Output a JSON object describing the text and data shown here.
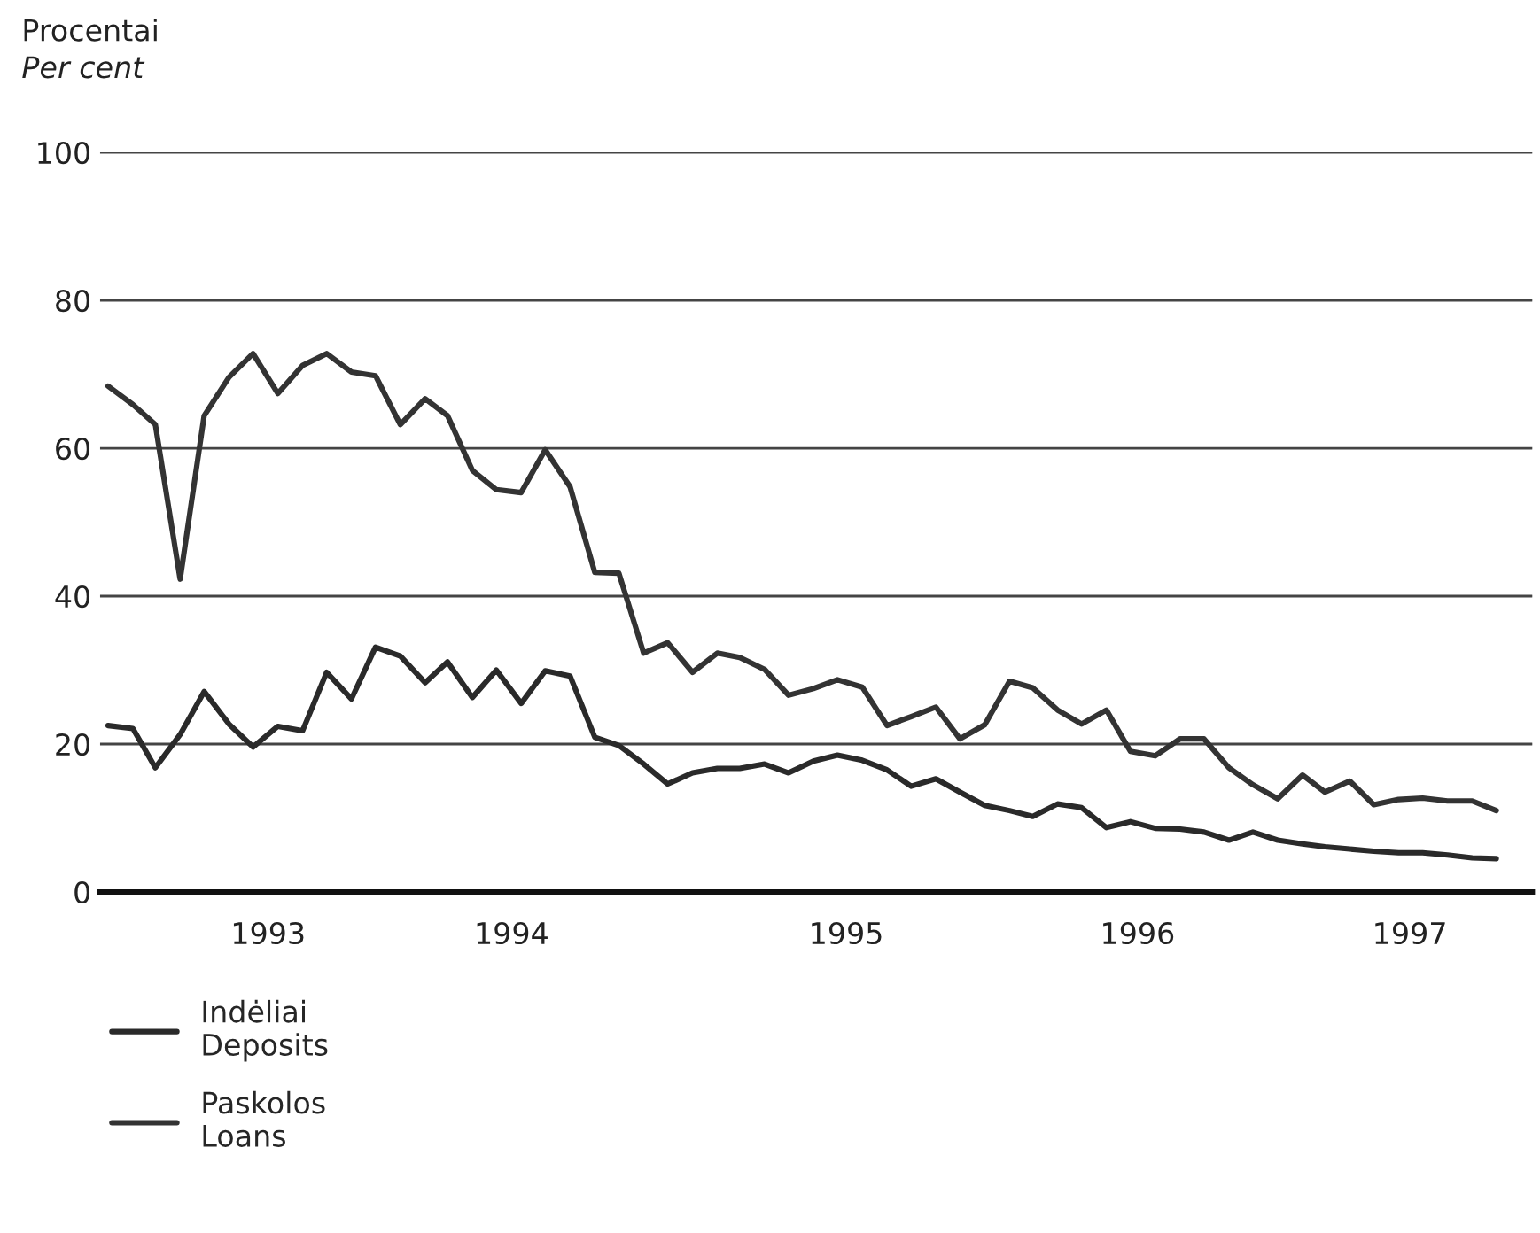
{
  "chart_data": {
    "type": "line",
    "ylabel": "Procentai\nPer cent",
    "x": [
      "1993-01",
      "1993-02",
      "1993-03",
      "1993-04",
      "1993-05",
      "1993-06",
      "1993-07",
      "1993-08",
      "1993-09",
      "1993-10",
      "1993-11",
      "1993-12",
      "1994-01",
      "1994-02",
      "1994-03",
      "1994-04",
      "1994-05",
      "1994-06",
      "1994-07",
      "1994-08",
      "1994-09",
      "1994-10",
      "1994-11",
      "1994-12",
      "1995-01",
      "1995-02",
      "1995-03",
      "1995-04",
      "1995-05",
      "1995-06",
      "1995-07",
      "1995-08",
      "1995-09",
      "1995-10",
      "1995-11",
      "1995-12",
      "1996-01",
      "1996-02",
      "1996-03",
      "1996-04",
      "1996-05",
      "1996-06",
      "1996-07",
      "1996-08",
      "1996-09",
      "1996-10",
      "1996-11",
      "1996-12",
      "1997-01",
      "1997-02",
      "1997-03",
      "1997-04",
      "1997-05",
      "1997-06",
      "1997-07",
      "1997-08",
      "1997-09",
      "1997-10"
    ],
    "series": [
      {
        "name": "Indėliai\nDeposits",
        "color": "#2a2a2a",
        "values": [
          22.5,
          22.1,
          16.8,
          21.3,
          27.1,
          22.7,
          19.6,
          22.4,
          21.8,
          29.7,
          26.1,
          33.1,
          31.9,
          28.3,
          31.1,
          26.3,
          30.0,
          25.5,
          29.9,
          29.2,
          20.9,
          19.8,
          17.3,
          14.6,
          16.1,
          16.7,
          16.7,
          17.3,
          16.1,
          17.7,
          18.5,
          17.8,
          16.5,
          14.3,
          15.3,
          13.5,
          11.7,
          11.0,
          10.2,
          11.9,
          11.4,
          8.7,
          9.5,
          8.6,
          8.5,
          8.1,
          7.0,
          8.1,
          7.0,
          6.5,
          6.1,
          5.8,
          5.5,
          5.3,
          5.3,
          5.0,
          4.6,
          4.5
        ]
      },
      {
        "name": "Paskolos\nLoans",
        "color": "#333333",
        "values": [
          68.4,
          65.9,
          63.2,
          42.3,
          64.4,
          69.6,
          72.8,
          67.4,
          71.2,
          72.8,
          70.3,
          69.8,
          63.2,
          66.7,
          64.4,
          57.0,
          54.4,
          54.0,
          59.8,
          54.8,
          43.2,
          43.1,
          32.3,
          33.7,
          29.7,
          32.3,
          31.7,
          30.1,
          26.6,
          27.5,
          28.7,
          27.7,
          22.5,
          23.7,
          25.0,
          20.7,
          22.6,
          28.5,
          27.6,
          24.6,
          22.7,
          24.6,
          19.0,
          18.4,
          20.7,
          20.7,
          16.8,
          14.5,
          12.6,
          15.8,
          13.5,
          15.0,
          11.8,
          12.5,
          12.7,
          12.3,
          12.3,
          11.0
        ]
      }
    ],
    "xlim": [
      "1992-12-22",
      "1997-11-15"
    ],
    "xticks": [
      {
        "value": "1993-07-20",
        "label": "1993"
      },
      {
        "value": "1994-05-20",
        "label": "1994"
      },
      {
        "value": "1995-07-12",
        "label": "1995"
      },
      {
        "value": "1996-07-10",
        "label": "1996"
      },
      {
        "value": "1997-06-15",
        "label": "1997"
      }
    ],
    "ylim": [
      0,
      100
    ],
    "yticks": [
      0,
      20,
      40,
      60,
      80,
      100
    ],
    "grid": "y",
    "legend": "bottom left",
    "marker": "none",
    "line_style": "solid"
  }
}
